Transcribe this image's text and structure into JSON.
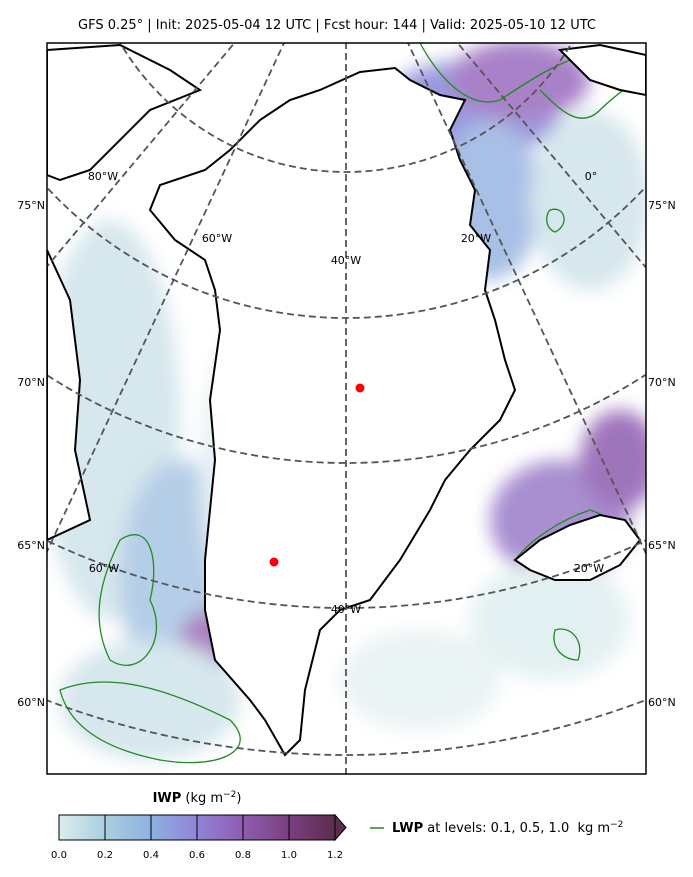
{
  "header": {
    "title": "GFS 0.25°  |  Init: 2025-05-04 12 UTC  |  Fcst hour: 144  |  Valid: 2025-05-10 12 UTC"
  },
  "map": {
    "lat_labels_left": [
      "75°N",
      "70°N",
      "65°N",
      "60°N"
    ],
    "lat_labels_right": [
      "75°N",
      "70°N",
      "65°N",
      "60°N"
    ],
    "lon_labels": [
      "80°W",
      "0°",
      "60°W",
      "20°W",
      "40°W",
      "60°W",
      "20°W",
      "40°W"
    ]
  },
  "colorbar": {
    "label_var": "IWP",
    "label_unit": "(kg m",
    "label_exp": "−2",
    "label_close": ")",
    "ticks": [
      {
        "value": 0,
        "label": "0.0"
      },
      0.2,
      0.4,
      0.6,
      0.8,
      {
        "value": 1,
        "label": "1.0"
      },
      1.2
    ],
    "colors": [
      "#dcedef",
      "#a9cfe0",
      "#8eb1e0",
      "#9184d8",
      "#8e5db0",
      "#7b3f80",
      "#5a2e4e"
    ]
  },
  "legend": {
    "var": "LWP",
    "text": " at levels: 0.1, 0.5, 1.0  kg m",
    "exp": "−2",
    "color": "#228b22"
  }
}
